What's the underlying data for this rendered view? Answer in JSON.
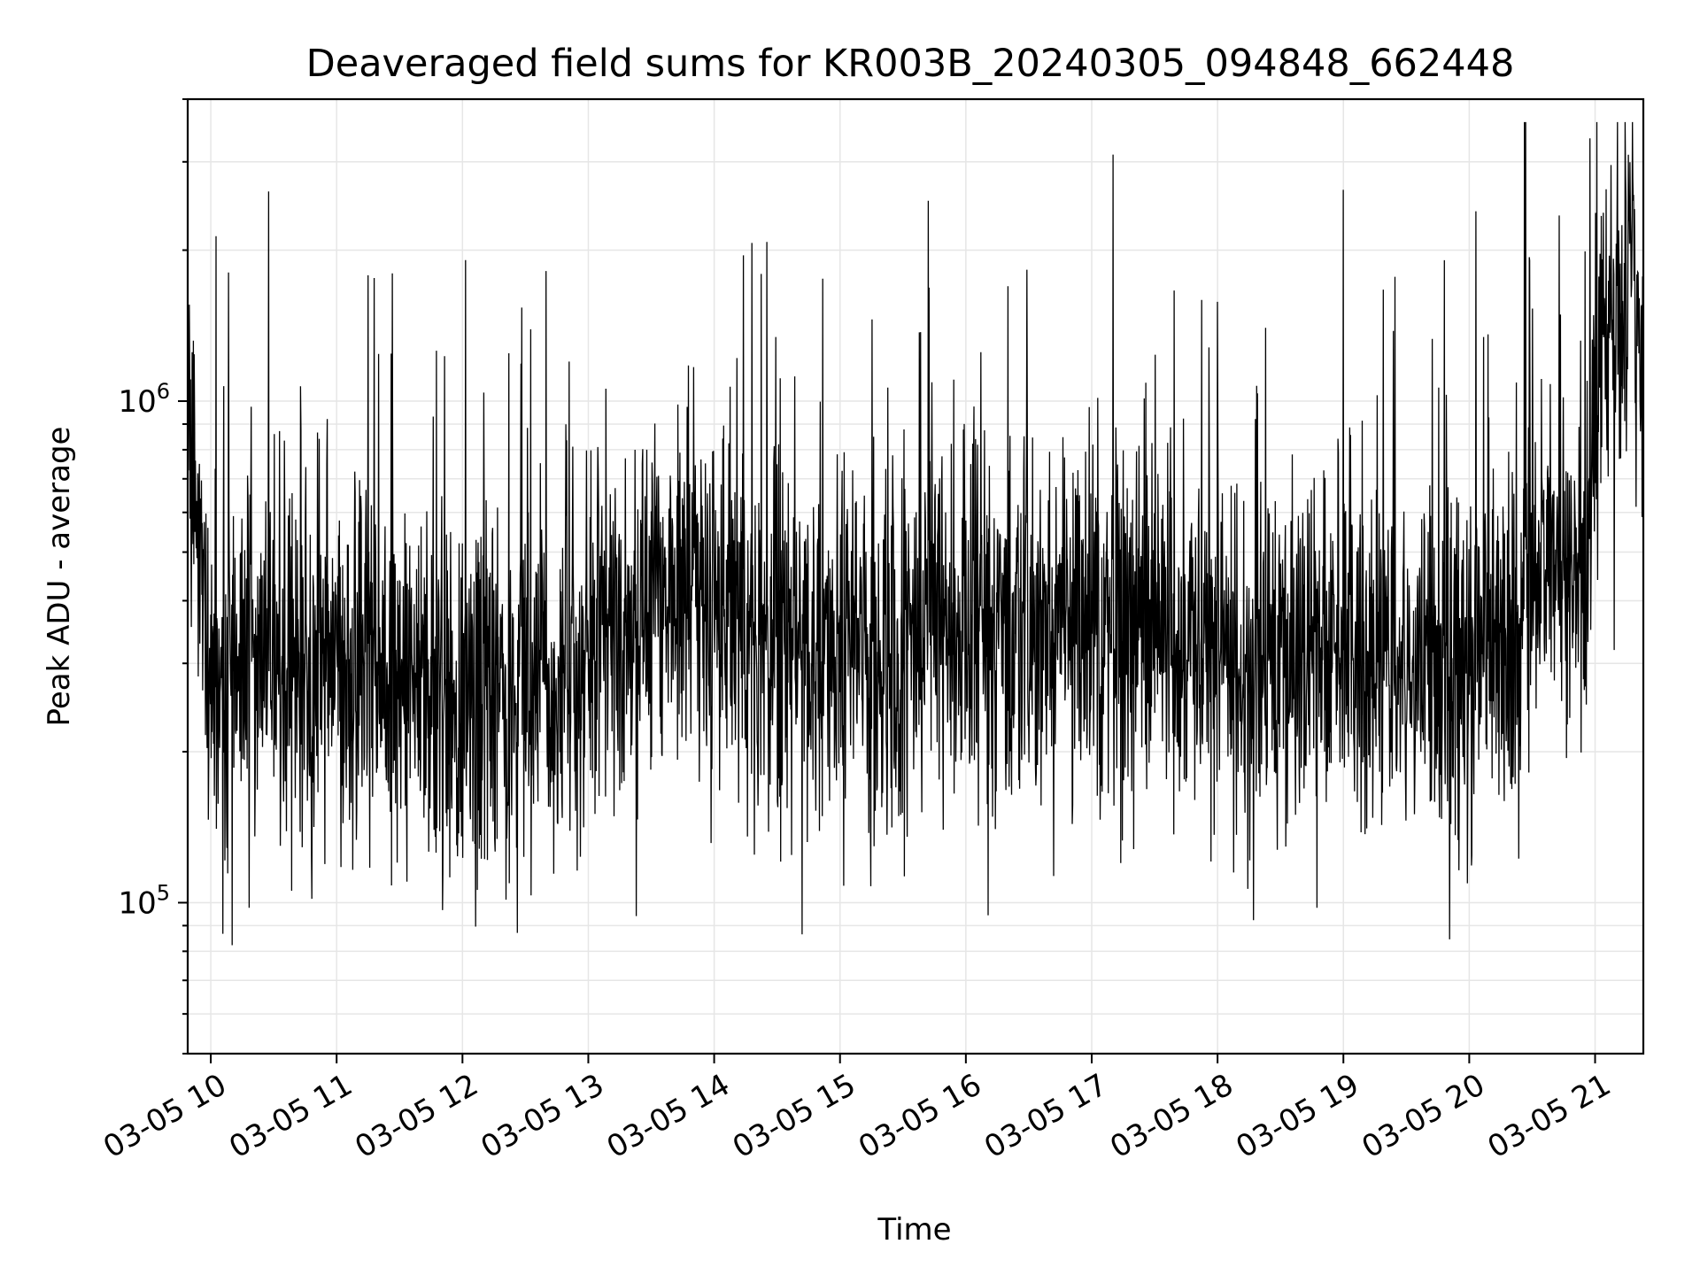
{
  "chart_data": {
    "type": "line",
    "title": "Deaveraged field sums for KR003B_20240305_094848_662448",
    "xlabel": "Time",
    "ylabel": "Peak ADU - average",
    "x_ticks": [
      "03-05 10",
      "03-05 11",
      "03-05 12",
      "03-05 13",
      "03-05 14",
      "03-05 15",
      "03-05 16",
      "03-05 17",
      "03-05 18",
      "03-05 19",
      "03-05 20",
      "03-05 21"
    ],
    "y_ticks": [
      {
        "base": "10",
        "exp": "5",
        "value": 100000
      },
      {
        "base": "10",
        "exp": "6",
        "value": 1000000
      }
    ],
    "xlim": [
      "2024-03-05 09:49",
      "2024-03-05 21:23"
    ],
    "ylim": [
      50000,
      4000000
    ],
    "y_scale": "log",
    "grid": true,
    "line_color": "#000000",
    "series": [
      {
        "x_start": "2024-03-05 09:49",
        "x_end": "2024-03-05 21:23",
        "profile_median": [
          [
            0.0,
            1000000
          ],
          [
            0.03,
            800000
          ],
          [
            0.15,
            280000
          ],
          [
            0.5,
            320000
          ],
          [
            1.0,
            300000
          ],
          [
            1.5,
            290000
          ],
          [
            2.0,
            260000
          ],
          [
            2.5,
            240000
          ],
          [
            3.0,
            280000
          ],
          [
            3.5,
            360000
          ],
          [
            4.0,
            420000
          ],
          [
            4.5,
            350000
          ],
          [
            5.0,
            320000
          ],
          [
            5.5,
            300000
          ],
          [
            6.0,
            360000
          ],
          [
            6.5,
            350000
          ],
          [
            7.0,
            370000
          ],
          [
            7.5,
            360000
          ],
          [
            8.0,
            330000
          ],
          [
            8.5,
            300000
          ],
          [
            9.0,
            310000
          ],
          [
            9.5,
            290000
          ],
          [
            10.0,
            270000
          ],
          [
            10.5,
            330000
          ],
          [
            10.7,
            500000
          ],
          [
            11.0,
            450000
          ],
          [
            11.15,
            500000
          ],
          [
            11.25,
            1400000
          ],
          [
            11.57,
            1500000
          ]
        ]
      }
    ]
  }
}
